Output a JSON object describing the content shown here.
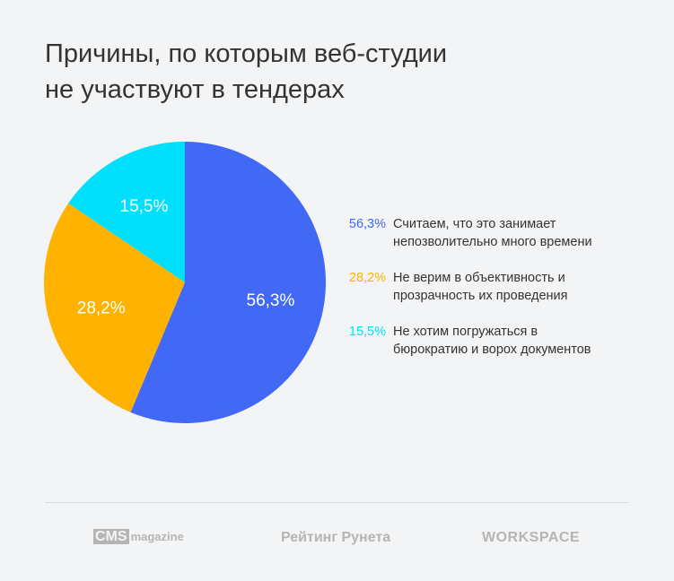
{
  "title_lines": [
    "Причины, по которым веб-студии",
    "не участвуют в тендерах"
  ],
  "chart_data": {
    "type": "pie",
    "title": "Причины, по которым веб-студии не участвуют в тендерах",
    "slices": [
      {
        "label": "Считаем, что это занимает непозволительно много времени",
        "value": 56.3,
        "display": "56,3%",
        "color": "#4169f5"
      },
      {
        "label": "Не верим в объективность и прозрачность их проведения",
        "value": 28.2,
        "display": "28,2%",
        "color": "#ffb200"
      },
      {
        "label": "Не хотим погружаться в бюрократию и ворох документов",
        "value": 15.5,
        "display": "15,5%",
        "color": "#00dffc"
      }
    ],
    "legend_placement": "right"
  },
  "legend": [
    {
      "pct": "56,3%",
      "lines": [
        "Считаем, что это занимает",
        "непозволительно много времени"
      ]
    },
    {
      "pct": "28,2%",
      "lines": [
        "Не верим в объективность и",
        "прозрачность их проведения"
      ]
    },
    {
      "pct": "15,5%",
      "lines": [
        "Не хотим погружаться в",
        "бюрократию и ворох документов"
      ]
    }
  ],
  "footer": {
    "logo1_box": "CMS",
    "logo1_text": "magazine",
    "logo2": "Рейтинг Рунета",
    "logo3": "WORKSPACE"
  }
}
